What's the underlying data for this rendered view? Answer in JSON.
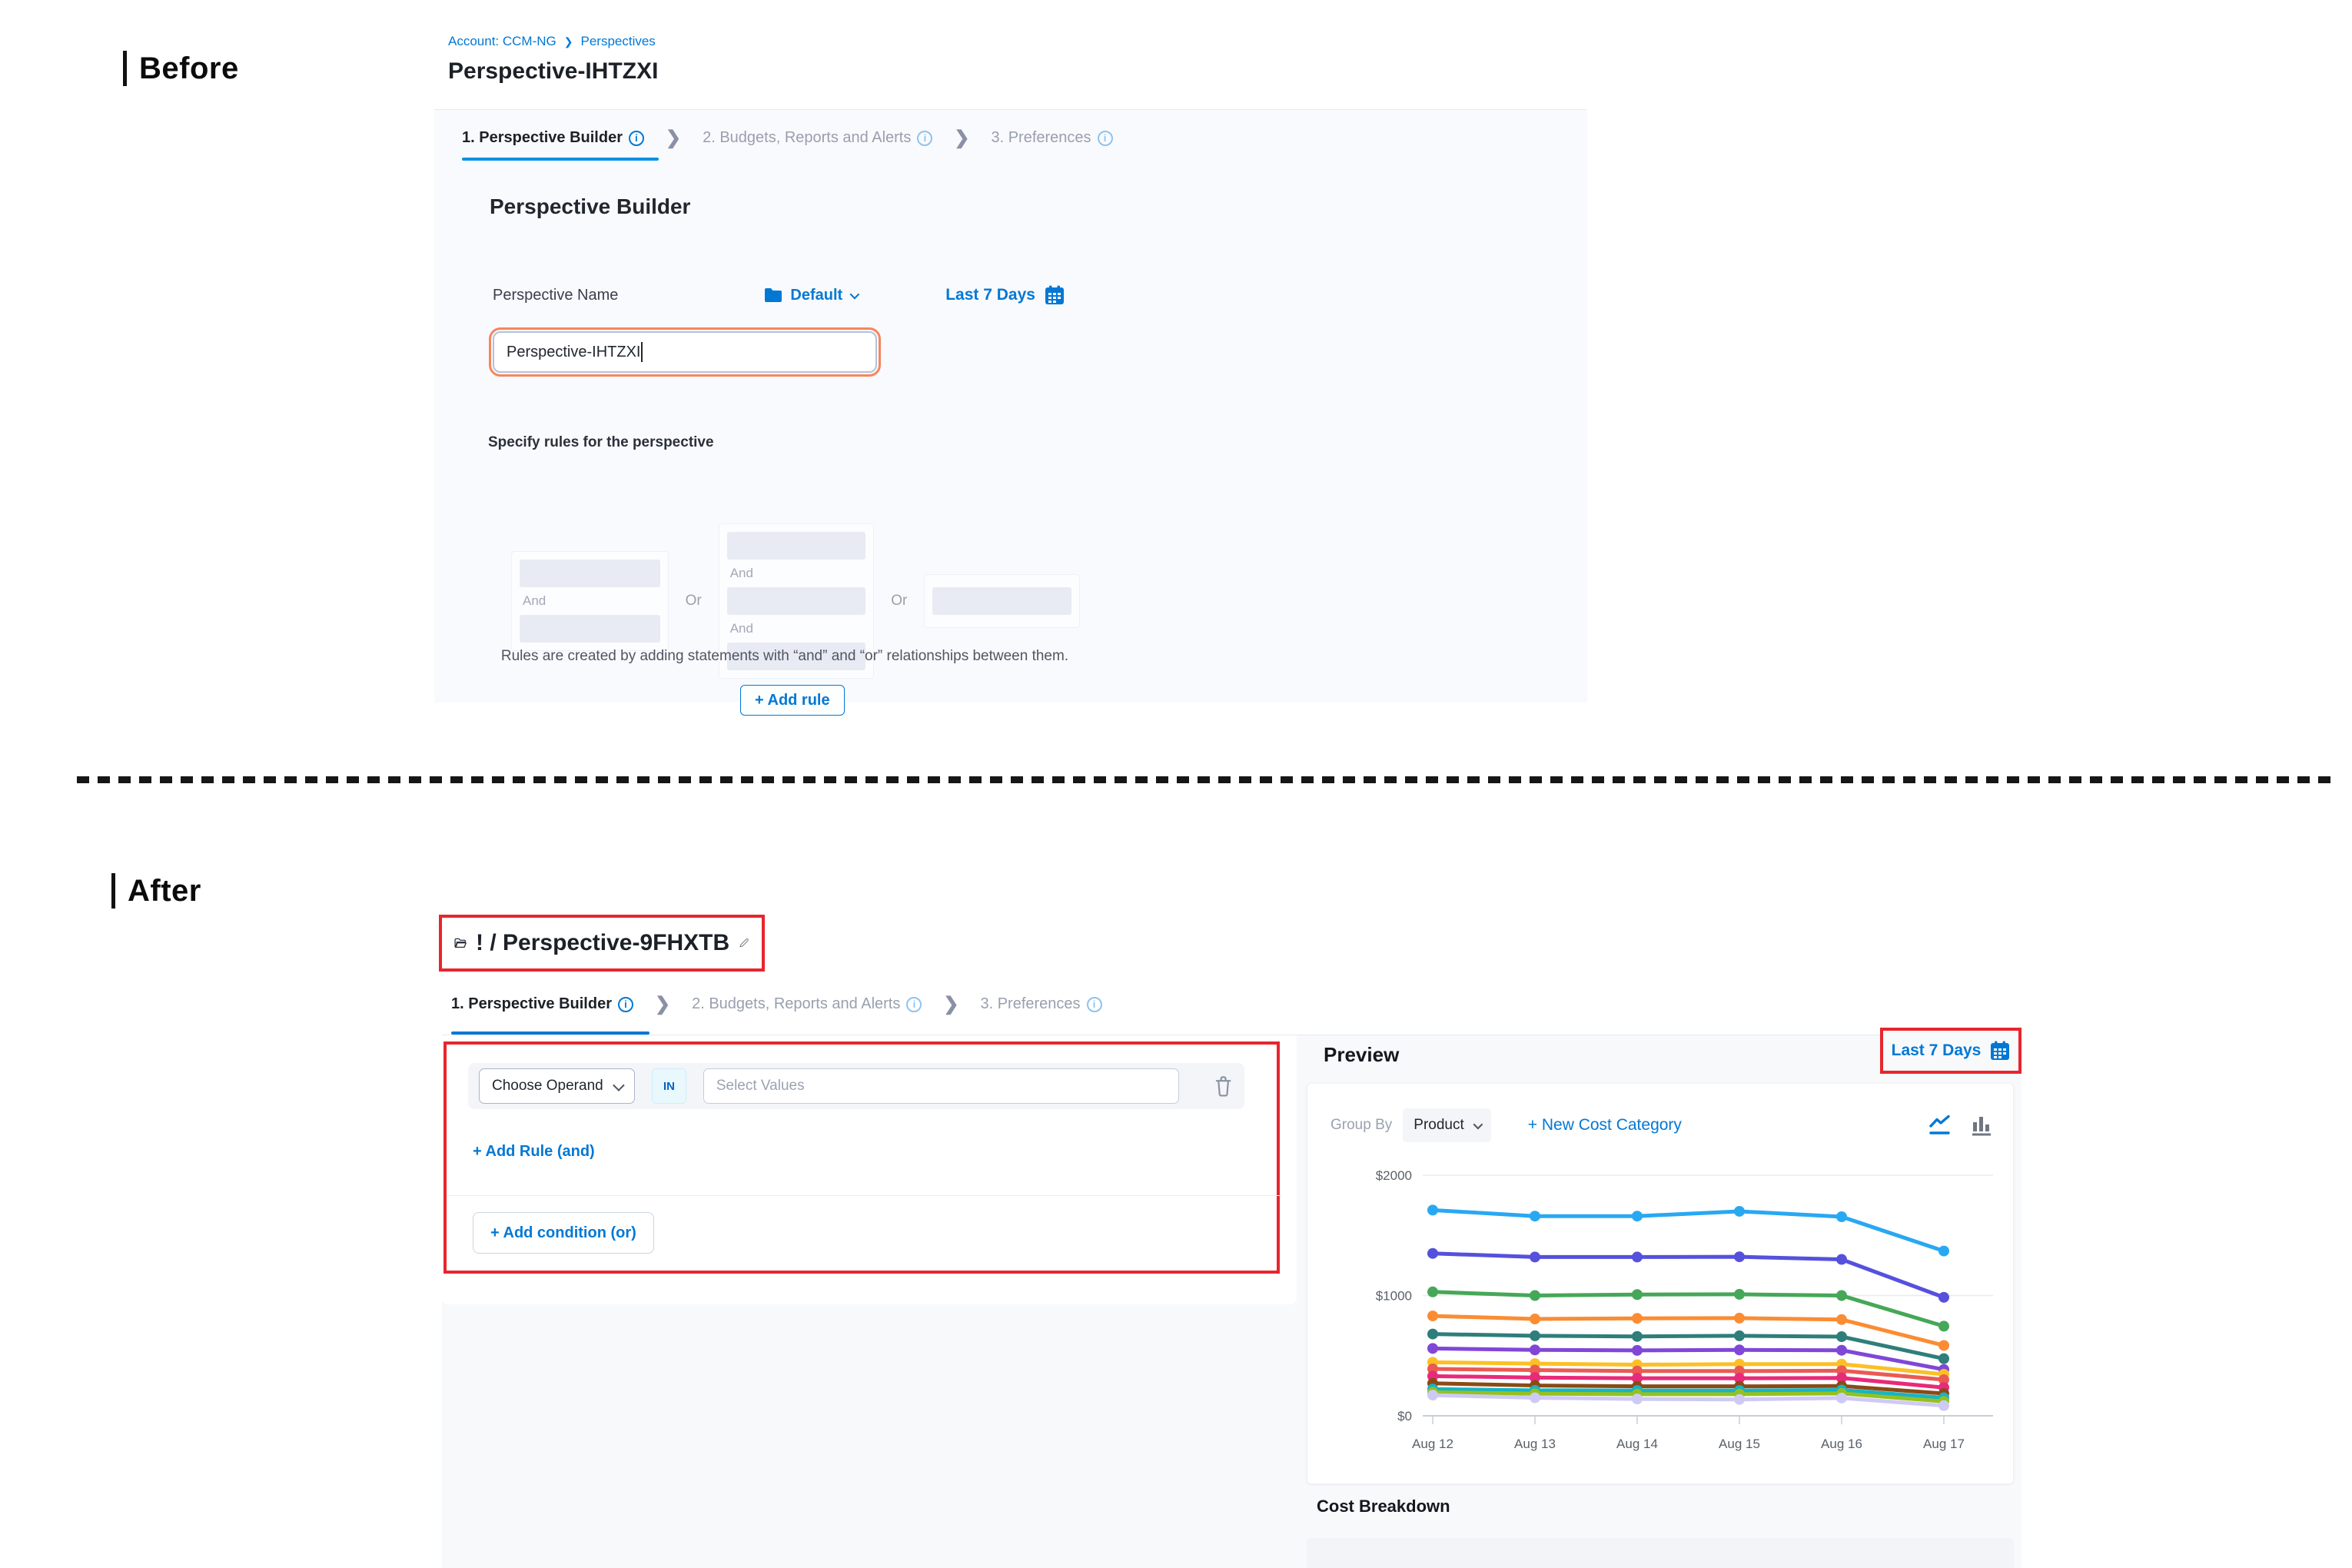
{
  "colors": {
    "accent": "#0278d5",
    "tab_underline": "#0092e4",
    "annotation_red": "#e8252d",
    "input_focus_ring": "#f8855c"
  },
  "tabs": [
    {
      "label": "1. Perspective Builder"
    },
    {
      "label": "2. Budgets, Reports and Alerts"
    },
    {
      "label": "3. Preferences"
    }
  ],
  "before": {
    "section_label": "Before",
    "breadcrumb": {
      "account": "Account: CCM-NG",
      "separator": "❯",
      "page": "Perspectives"
    },
    "title": "Perspective-IHTZXI",
    "builder": {
      "heading": "Perspective Builder",
      "name_label": "Perspective Name",
      "folder_select_value": "Default",
      "date_range": "Last 7 Days",
      "name_value": "Perspective-IHTZXI",
      "rules_label": "Specify rules for the perspective",
      "and_label": "And",
      "or_label": "Or",
      "rules_help": "Rules are created by adding statements with “and” and “or” relationships between them.",
      "add_rule_button": "+ Add rule"
    }
  },
  "after": {
    "section_label": "After",
    "title": "! / Perspective-9FHXTB",
    "builder": {
      "operand_select_value": "Choose Operand",
      "operator_badge": "IN",
      "values_placeholder": "Select Values",
      "add_rule_link": "+ Add Rule (and)",
      "add_condition_button": "+ Add condition (or)"
    },
    "preview": {
      "heading": "Preview",
      "date_range": "Last 7 Days",
      "group_by_label": "Group By",
      "group_by_value": "Product",
      "new_cost_category_link": "+ New Cost Category",
      "cost_breakdown_heading": "Cost Breakdown"
    }
  },
  "chart_data": {
    "type": "line",
    "title": "",
    "xlabel": "",
    "ylabel": "",
    "x": [
      "Aug 12",
      "Aug 13",
      "Aug 14",
      "Aug 15",
      "Aug 16",
      "Aug 17"
    ],
    "yticks": [
      {
        "value": 0,
        "label": "$0"
      },
      {
        "value": 1000,
        "label": "$1000"
      },
      {
        "value": 2000,
        "label": "$2000"
      }
    ],
    "ylim": [
      0,
      2000
    ],
    "grid": true,
    "legend": false,
    "series": [
      {
        "color": "#29a8f2",
        "values": [
          1710,
          1660,
          1660,
          1700,
          1655,
          1370
        ]
      },
      {
        "color": "#5551dd",
        "values": [
          1350,
          1320,
          1320,
          1322,
          1300,
          985
        ]
      },
      {
        "color": "#46a758",
        "values": [
          1030,
          1000,
          1008,
          1010,
          1000,
          745
        ]
      },
      {
        "color": "#fb8c33",
        "values": [
          830,
          805,
          810,
          812,
          800,
          585
        ]
      },
      {
        "color": "#2f7e7b",
        "values": [
          680,
          665,
          660,
          665,
          658,
          475
        ]
      },
      {
        "color": "#8047d7",
        "values": [
          560,
          548,
          544,
          548,
          545,
          385
        ]
      },
      {
        "color": "#fcc026",
        "values": [
          445,
          434,
          425,
          430,
          430,
          345
        ]
      },
      {
        "color": "#ea5a54",
        "values": [
          390,
          380,
          372,
          372,
          375,
          300
        ]
      },
      {
        "color": "#e82a7a",
        "values": [
          330,
          318,
          312,
          312,
          315,
          235
        ]
      },
      {
        "color": "#8a4b16",
        "values": [
          270,
          252,
          245,
          245,
          248,
          185
        ]
      },
      {
        "color": "#17b4c4",
        "values": [
          222,
          212,
          210,
          210,
          214,
          150
        ]
      },
      {
        "color": "#95c11f",
        "values": [
          196,
          184,
          180,
          180,
          186,
          120
        ]
      },
      {
        "color": "#cfcaf4",
        "values": [
          172,
          150,
          140,
          136,
          148,
          85
        ]
      }
    ]
  }
}
